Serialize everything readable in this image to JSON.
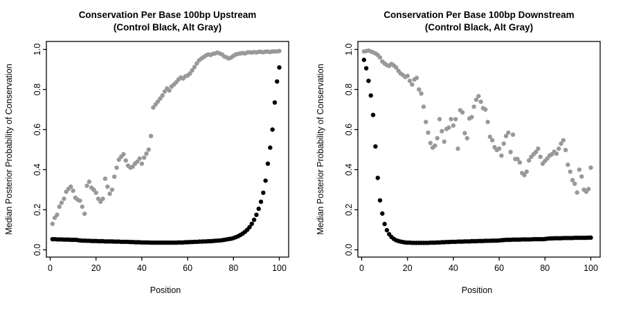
{
  "page": {
    "background": "#ffffff",
    "text_color": "#000000"
  },
  "palette": {
    "control": "#000000",
    "alt": "#999999"
  },
  "chart_data": [
    {
      "type": "scatter",
      "title": "Conservation Per Base 100bp Upstream",
      "subtitle": "(Control Black, Alt Gray)",
      "xlabel": "Position",
      "ylabel": "Median Posterior Probability of Conservation",
      "xlim": [
        0,
        100
      ],
      "ylim": [
        0.0,
        1.0
      ],
      "xticks": [
        0,
        20,
        40,
        60,
        80,
        100
      ],
      "yticks": [
        "0.0",
        "0.2",
        "0.4",
        "0.6",
        "0.8",
        "1.0"
      ],
      "grid": false,
      "legend_position": "none",
      "x": [
        1,
        2,
        3,
        4,
        5,
        6,
        7,
        8,
        9,
        10,
        11,
        12,
        13,
        14,
        15,
        16,
        17,
        18,
        19,
        20,
        21,
        22,
        23,
        24,
        25,
        26,
        27,
        28,
        29,
        30,
        31,
        32,
        33,
        34,
        35,
        36,
        37,
        38,
        39,
        40,
        41,
        42,
        43,
        44,
        45,
        46,
        47,
        48,
        49,
        50,
        51,
        52,
        53,
        54,
        55,
        56,
        57,
        58,
        59,
        60,
        61,
        62,
        63,
        64,
        65,
        66,
        67,
        68,
        69,
        70,
        71,
        72,
        73,
        74,
        75,
        76,
        77,
        78,
        79,
        80,
        81,
        82,
        83,
        84,
        85,
        86,
        87,
        88,
        89,
        90,
        91,
        92,
        93,
        94,
        95,
        96,
        97,
        98,
        99,
        100
      ],
      "series": [
        {
          "name": "Control",
          "color": "#000000",
          "values": [
            0.053,
            0.053,
            0.052,
            0.052,
            0.052,
            0.051,
            0.051,
            0.051,
            0.05,
            0.05,
            0.05,
            0.049,
            0.047,
            0.046,
            0.046,
            0.045,
            0.045,
            0.044,
            0.044,
            0.044,
            0.043,
            0.043,
            0.043,
            0.042,
            0.042,
            0.042,
            0.042,
            0.041,
            0.041,
            0.041,
            0.04,
            0.04,
            0.04,
            0.04,
            0.039,
            0.039,
            0.038,
            0.038,
            0.038,
            0.037,
            0.037,
            0.037,
            0.037,
            0.036,
            0.036,
            0.036,
            0.036,
            0.036,
            0.036,
            0.036,
            0.036,
            0.036,
            0.036,
            0.036,
            0.036,
            0.037,
            0.037,
            0.037,
            0.038,
            0.038,
            0.039,
            0.039,
            0.04,
            0.04,
            0.041,
            0.041,
            0.042,
            0.042,
            0.043,
            0.043,
            0.044,
            0.045,
            0.046,
            0.047,
            0.048,
            0.05,
            0.052,
            0.054,
            0.056,
            0.059,
            0.063,
            0.068,
            0.074,
            0.081,
            0.09,
            0.1,
            0.113,
            0.13,
            0.15,
            0.175,
            0.205,
            0.24,
            0.285,
            0.345,
            0.43,
            0.51,
            0.6,
            0.735,
            0.84,
            0.91
          ]
        },
        {
          "name": "Alt",
          "color": "#999999",
          "values": [
            0.13,
            0.16,
            0.175,
            0.215,
            0.235,
            0.255,
            0.29,
            0.305,
            0.315,
            0.295,
            0.26,
            0.25,
            0.245,
            0.215,
            0.18,
            0.32,
            0.34,
            0.31,
            0.3,
            0.285,
            0.255,
            0.24,
            0.255,
            0.355,
            0.315,
            0.28,
            0.3,
            0.365,
            0.41,
            0.45,
            0.465,
            0.477,
            0.446,
            0.42,
            0.41,
            0.415,
            0.43,
            0.44,
            0.455,
            0.43,
            0.46,
            0.48,
            0.5,
            0.568,
            0.71,
            0.726,
            0.74,
            0.755,
            0.77,
            0.79,
            0.805,
            0.795,
            0.815,
            0.825,
            0.836,
            0.85,
            0.86,
            0.855,
            0.866,
            0.87,
            0.88,
            0.896,
            0.912,
            0.93,
            0.945,
            0.955,
            0.962,
            0.97,
            0.975,
            0.972,
            0.978,
            0.98,
            0.984,
            0.98,
            0.975,
            0.965,
            0.96,
            0.955,
            0.96,
            0.968,
            0.975,
            0.978,
            0.98,
            0.982,
            0.98,
            0.985,
            0.986,
            0.984,
            0.987,
            0.985,
            0.988,
            0.988,
            0.986,
            0.989,
            0.989,
            0.987,
            0.99,
            0.99,
            0.99,
            0.992
          ]
        }
      ]
    },
    {
      "type": "scatter",
      "title": "Conservation Per Base 100bp Downstream",
      "subtitle": "(Control Black, Alt Gray)",
      "xlabel": "Position",
      "ylabel": "Median Posterior Probability of Conservation",
      "xlim": [
        0,
        100
      ],
      "ylim": [
        0.0,
        1.0
      ],
      "xticks": [
        0,
        20,
        40,
        60,
        80,
        100
      ],
      "yticks": [
        "0.0",
        "0.2",
        "0.4",
        "0.6",
        "0.8",
        "1.0"
      ],
      "grid": false,
      "legend_position": "none",
      "x": [
        1,
        2,
        3,
        4,
        5,
        6,
        7,
        8,
        9,
        10,
        11,
        12,
        13,
        14,
        15,
        16,
        17,
        18,
        19,
        20,
        21,
        22,
        23,
        24,
        25,
        26,
        27,
        28,
        29,
        30,
        31,
        32,
        33,
        34,
        35,
        36,
        37,
        38,
        39,
        40,
        41,
        42,
        43,
        44,
        45,
        46,
        47,
        48,
        49,
        50,
        51,
        52,
        53,
        54,
        55,
        56,
        57,
        58,
        59,
        60,
        61,
        62,
        63,
        64,
        65,
        66,
        67,
        68,
        69,
        70,
        71,
        72,
        73,
        74,
        75,
        76,
        77,
        78,
        79,
        80,
        81,
        82,
        83,
        84,
        85,
        86,
        87,
        88,
        89,
        90,
        91,
        92,
        93,
        94,
        95,
        96,
        97,
        98,
        99,
        100
      ],
      "series": [
        {
          "name": "Control",
          "color": "#000000",
          "values": [
            0.948,
            0.906,
            0.843,
            0.77,
            0.673,
            0.516,
            0.359,
            0.247,
            0.181,
            0.129,
            0.098,
            0.078,
            0.064,
            0.055,
            0.048,
            0.044,
            0.041,
            0.039,
            0.037,
            0.036,
            0.036,
            0.035,
            0.035,
            0.035,
            0.035,
            0.035,
            0.035,
            0.035,
            0.035,
            0.036,
            0.036,
            0.036,
            0.037,
            0.037,
            0.038,
            0.038,
            0.039,
            0.039,
            0.04,
            0.04,
            0.04,
            0.041,
            0.041,
            0.041,
            0.042,
            0.042,
            0.042,
            0.043,
            0.043,
            0.043,
            0.044,
            0.044,
            0.044,
            0.045,
            0.045,
            0.045,
            0.046,
            0.046,
            0.046,
            0.047,
            0.048,
            0.049,
            0.05,
            0.05,
            0.05,
            0.051,
            0.051,
            0.051,
            0.051,
            0.052,
            0.052,
            0.052,
            0.052,
            0.052,
            0.053,
            0.053,
            0.053,
            0.053,
            0.053,
            0.054,
            0.056,
            0.057,
            0.057,
            0.058,
            0.058,
            0.058,
            0.058,
            0.059,
            0.059,
            0.059,
            0.059,
            0.059,
            0.06,
            0.06,
            0.06,
            0.06,
            0.06,
            0.06,
            0.061,
            0.061
          ]
        },
        {
          "name": "Alt",
          "color": "#999999",
          "values": [
            0.99,
            0.992,
            0.994,
            0.99,
            0.986,
            0.98,
            0.972,
            0.96,
            0.94,
            0.93,
            0.922,
            0.918,
            0.928,
            0.92,
            0.91,
            0.893,
            0.88,
            0.872,
            0.862,
            0.868,
            0.843,
            0.825,
            0.85,
            0.858,
            0.8,
            0.78,
            0.714,
            0.638,
            0.585,
            0.533,
            0.51,
            0.52,
            0.557,
            0.652,
            0.592,
            0.54,
            0.603,
            0.61,
            0.652,
            0.62,
            0.652,
            0.505,
            0.697,
            0.686,
            0.582,
            0.557,
            0.655,
            0.662,
            0.714,
            0.749,
            0.767,
            0.739,
            0.707,
            0.7,
            0.638,
            0.564,
            0.547,
            0.512,
            0.498,
            0.505,
            0.47,
            0.53,
            0.568,
            0.585,
            0.488,
            0.575,
            0.453,
            0.453,
            0.436,
            0.383,
            0.373,
            0.39,
            0.446,
            0.464,
            0.477,
            0.488,
            0.505,
            0.464,
            0.43,
            0.443,
            0.455,
            0.47,
            0.477,
            0.49,
            0.48,
            0.505,
            0.53,
            0.547,
            0.498,
            0.425,
            0.39,
            0.348,
            0.33,
            0.286,
            0.4,
            0.366,
            0.3,
            0.29,
            0.303,
            0.41
          ]
        }
      ]
    }
  ]
}
